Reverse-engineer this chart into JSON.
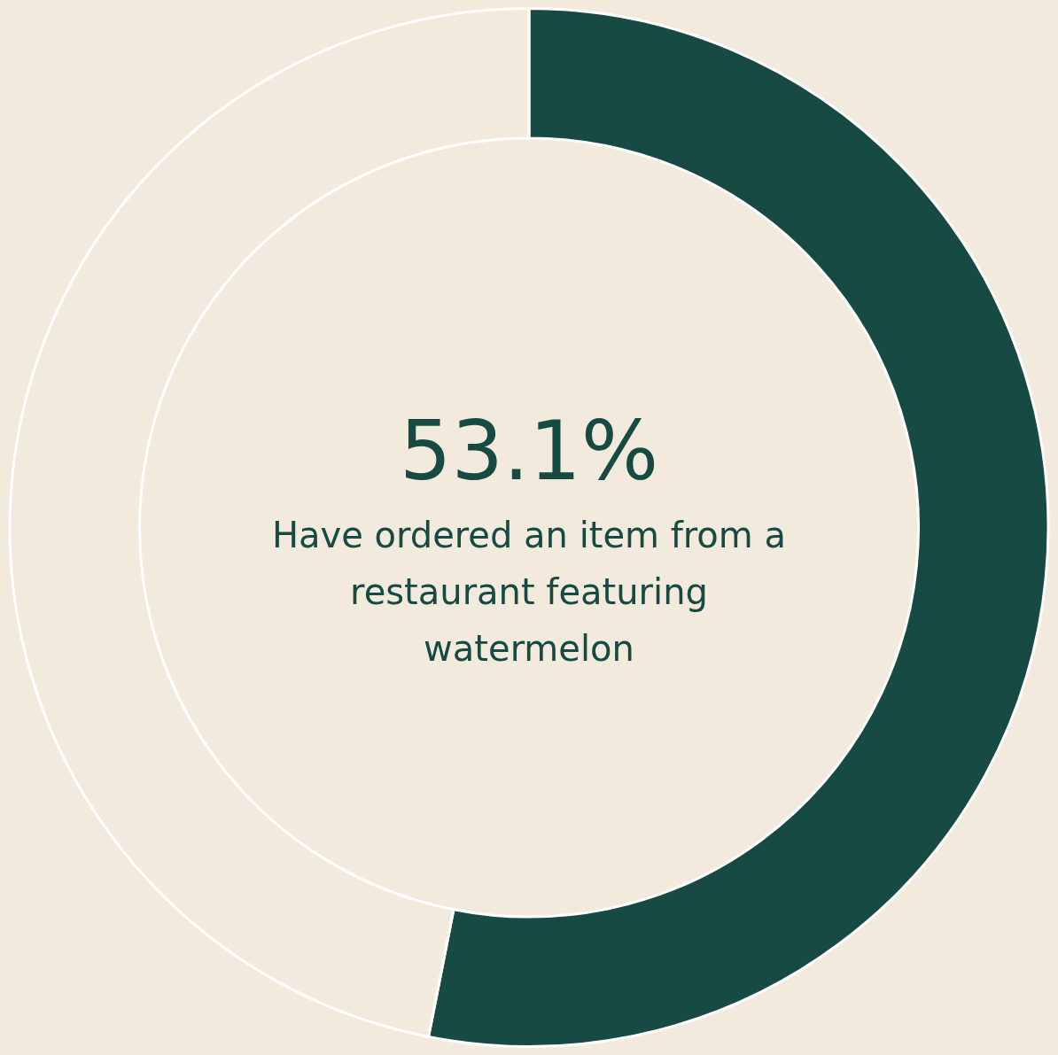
{
  "chart_data": {
    "type": "donut",
    "categories": [
      null,
      null
    ],
    "values": [
      53.1,
      46.9
    ],
    "colors": [
      "#164a42",
      "#f2eadc"
    ],
    "value_labels": [
      "53.1%",
      null
    ],
    "annotations": [
      "Have ordered an item from a restaurant featuring watermelon"
    ],
    "legend": false
  }
}
